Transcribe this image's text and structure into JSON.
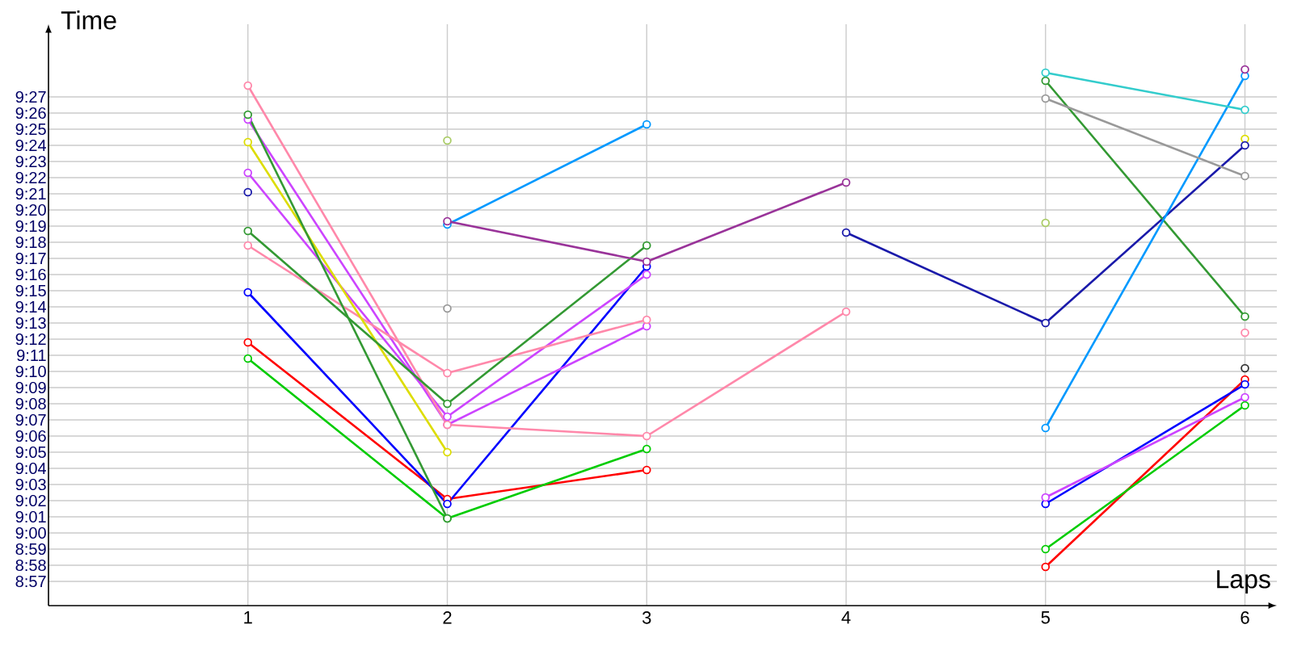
{
  "chart_data": {
    "type": "line",
    "xlabel": "Laps",
    "ylabel": "Time",
    "x": [
      1,
      2,
      3,
      4,
      5,
      6
    ],
    "xlim": [
      0,
      6.16
    ],
    "xticks": [
      1,
      2,
      3,
      4,
      5,
      6
    ],
    "ylim": [
      535.5,
      571.5
    ],
    "yticks": [
      {
        "value": 537,
        "label": "8:57"
      },
      {
        "value": 538,
        "label": "8:58"
      },
      {
        "value": 539,
        "label": "8:59"
      },
      {
        "value": 540,
        "label": "9:00"
      },
      {
        "value": 541,
        "label": "9:01"
      },
      {
        "value": 542,
        "label": "9:02"
      },
      {
        "value": 543,
        "label": "9:03"
      },
      {
        "value": 544,
        "label": "9:04"
      },
      {
        "value": 545,
        "label": "9:05"
      },
      {
        "value": 546,
        "label": "9:06"
      },
      {
        "value": 547,
        "label": "9:07"
      },
      {
        "value": 548,
        "label": "9:08"
      },
      {
        "value": 549,
        "label": "9:09"
      },
      {
        "value": 550,
        "label": "9:10"
      },
      {
        "value": 551,
        "label": "9:11"
      },
      {
        "value": 552,
        "label": "9:12"
      },
      {
        "value": 553,
        "label": "9:13"
      },
      {
        "value": 554,
        "label": "9:14"
      },
      {
        "value": 555,
        "label": "9:15"
      },
      {
        "value": 556,
        "label": "9:16"
      },
      {
        "value": 557,
        "label": "9:17"
      },
      {
        "value": 558,
        "label": "9:18"
      },
      {
        "value": 559,
        "label": "9:19"
      },
      {
        "value": 560,
        "label": "9:20"
      },
      {
        "value": 561,
        "label": "9:21"
      },
      {
        "value": 562,
        "label": "9:22"
      },
      {
        "value": 563,
        "label": "9:23"
      },
      {
        "value": 564,
        "label": "9:24"
      },
      {
        "value": 565,
        "label": "9:25"
      },
      {
        "value": 566,
        "label": "9:26"
      },
      {
        "value": 567,
        "label": "9:27"
      }
    ],
    "grid": true,
    "marker": "circle",
    "line_style": "solid",
    "series": [
      {
        "color": "#ff0000",
        "values": [
          551.8,
          542.1,
          543.9,
          null,
          537.9,
          549.5
        ]
      },
      {
        "color": "#00cc00",
        "values": [
          550.8,
          540.9,
          545.2,
          null,
          539.0,
          547.9
        ]
      },
      {
        "color": "#0000ff",
        "values": [
          554.9,
          541.8,
          556.5,
          null,
          541.8,
          549.2
        ]
      },
      {
        "color": "#cc44ff",
        "values": [
          565.6,
          546.7,
          552.8,
          null,
          542.2,
          548.4
        ]
      },
      {
        "color": "#cc44ff",
        "values": [
          562.3,
          547.2,
          556.0,
          null,
          null,
          null
        ]
      },
      {
        "color": "#ff88aa",
        "values": [
          567.7,
          546.7,
          546.0,
          553.7,
          null,
          552.4
        ]
      },
      {
        "color": "#ff88aa",
        "values": [
          557.8,
          549.9,
          553.2,
          null,
          null,
          null
        ]
      },
      {
        "color": "#dddd00",
        "values": [
          564.2,
          545.0,
          null,
          null,
          null,
          564.4
        ]
      },
      {
        "color": "#1a1aaa",
        "values": [
          561.1,
          null,
          null,
          558.6,
          553.0,
          564.0
        ]
      },
      {
        "color": "#339933",
        "values": [
          558.7,
          548.0,
          557.8,
          null,
          568.0,
          553.4
        ]
      },
      {
        "color": "#339933",
        "values": [
          565.9,
          540.9,
          null,
          null,
          null,
          null
        ]
      },
      {
        "color": "#0099ff",
        "values": [
          null,
          559.1,
          565.3,
          null,
          546.5,
          568.3
        ]
      },
      {
        "color": "#999999",
        "values": [
          null,
          553.9,
          null,
          null,
          566.9,
          562.1
        ]
      },
      {
        "color": "#993399",
        "values": [
          null,
          559.3,
          556.8,
          561.7,
          null,
          568.7
        ]
      },
      {
        "color": "#aacc66",
        "type": "scatter",
        "values": [
          null,
          564.3,
          null,
          null,
          559.2,
          null
        ]
      },
      {
        "color": "#33cccc",
        "values": [
          null,
          null,
          null,
          null,
          568.5,
          566.2
        ]
      },
      {
        "color": "#333333",
        "type": "scatter",
        "values": [
          null,
          null,
          null,
          null,
          null,
          550.2
        ]
      }
    ]
  }
}
